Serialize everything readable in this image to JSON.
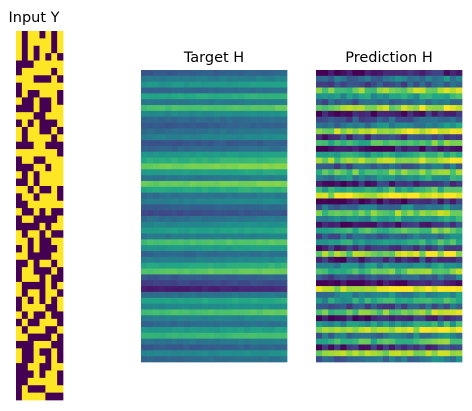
{
  "chart_data": [
    {
      "type": "heatmap",
      "title": "Input Y",
      "colormap": "viridis",
      "binary": true,
      "rows": 50,
      "cols": 8,
      "value_range": [
        0,
        1
      ],
      "low_color": "#440154",
      "high_color": "#fde725",
      "axes": "off",
      "pattern_seed": 17,
      "fill_fraction": 0.55
    },
    {
      "type": "heatmap",
      "title": "Target H",
      "colormap": "viridis",
      "rows": 50,
      "cols": 24,
      "value_range": [
        0,
        1
      ],
      "axes": "off",
      "row_levels": [
        0.3,
        0.42,
        0.55,
        0.35,
        0.62,
        0.4,
        0.72,
        0.48,
        0.35,
        0.3,
        0.38,
        0.45,
        0.28,
        0.35,
        0.55,
        0.65,
        0.8,
        0.58,
        0.4,
        0.78,
        0.62,
        0.38,
        0.45,
        0.32,
        0.25,
        0.38,
        0.48,
        0.58,
        0.42,
        0.72,
        0.55,
        0.35,
        0.45,
        0.62,
        0.75,
        0.3,
        0.22,
        0.1,
        0.38,
        0.6,
        0.48,
        0.72,
        0.45,
        0.35,
        0.55,
        0.68,
        0.4,
        0.3,
        0.48,
        0.35
      ],
      "drift": 0.06
    },
    {
      "type": "heatmap",
      "title": "Prediction H",
      "colormap": "viridis",
      "rows": 50,
      "cols": 24,
      "value_range": [
        0,
        1
      ],
      "axes": "off",
      "row_levels": [
        0.05,
        0.4,
        0.25,
        0.8,
        0.55,
        0.35,
        0.85,
        0.1,
        0.3,
        0.45,
        0.9,
        0.2,
        0.7,
        0.05,
        0.6,
        0.85,
        0.3,
        0.75,
        0.5,
        0.15,
        0.65,
        0.95,
        0.05,
        0.4,
        0.8,
        0.55,
        0.1,
        0.7,
        0.35,
        0.6,
        0.2,
        0.85,
        0.15,
        0.5,
        0.75,
        0.3,
        0.05,
        0.95,
        0.45,
        0.6,
        0.25,
        0.8,
        0.1,
        0.55,
        0.9,
        0.4,
        0.7,
        0.15,
        0.85,
        0.35
      ],
      "noise": 0.22
    }
  ]
}
